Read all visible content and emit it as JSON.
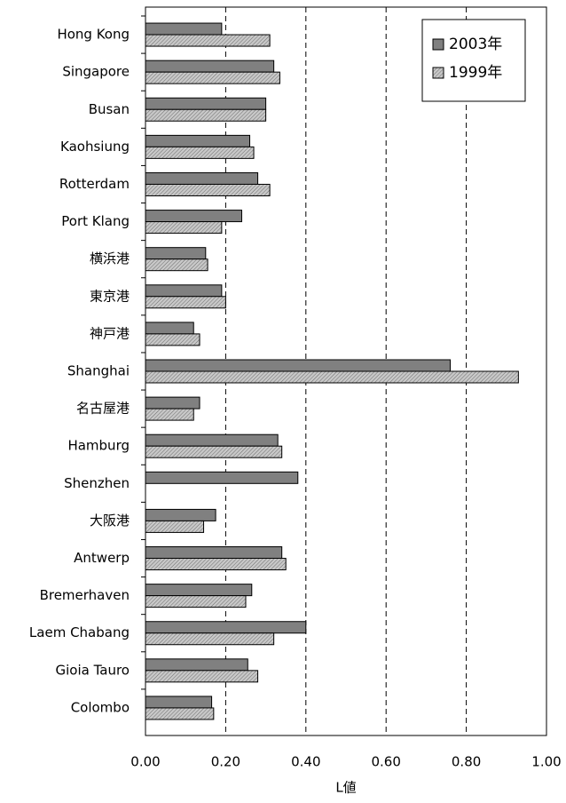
{
  "chart_data": {
    "type": "hbar",
    "x_label": "L値",
    "categories": [
      "Hong Kong",
      "Singapore",
      "Busan",
      "Kaohsiung",
      "Rotterdam",
      "Port Klang",
      "横浜港",
      "東京港",
      "神戸港",
      "Shanghai",
      "名古屋港",
      "Hamburg",
      "Shenzhen",
      "大阪港",
      "Antwerp",
      "Bremerhaven",
      "Laem Chabang",
      "Gioia Tauro",
      "Colombo"
    ],
    "series": [
      {
        "name": "2003年",
        "color": "#808080",
        "values": [
          0.19,
          0.32,
          0.3,
          0.26,
          0.28,
          0.24,
          0.15,
          0.19,
          0.12,
          0.76,
          0.135,
          0.33,
          0.38,
          0.175,
          0.34,
          0.265,
          0.4,
          0.255,
          0.165
        ]
      },
      {
        "name": "1999年",
        "color": "#c8c8c8",
        "values": [
          0.31,
          0.335,
          0.3,
          0.27,
          0.31,
          0.19,
          0.155,
          0.2,
          0.135,
          0.93,
          0.12,
          0.34,
          null,
          0.145,
          0.35,
          0.25,
          0.32,
          0.28,
          0.17
        ]
      }
    ],
    "xlim": [
      0,
      1
    ],
    "xticks": [
      {
        "value": 0,
        "label": "0.00"
      },
      {
        "value": 0.2,
        "label": "0.20"
      },
      {
        "value": 0.4,
        "label": "0.40"
      },
      {
        "value": 0.6,
        "label": "0.60"
      },
      {
        "value": 0.8,
        "label": "0.80"
      },
      {
        "value": 1,
        "label": "1.00"
      }
    ],
    "grid": true,
    "legend": "upper right"
  }
}
